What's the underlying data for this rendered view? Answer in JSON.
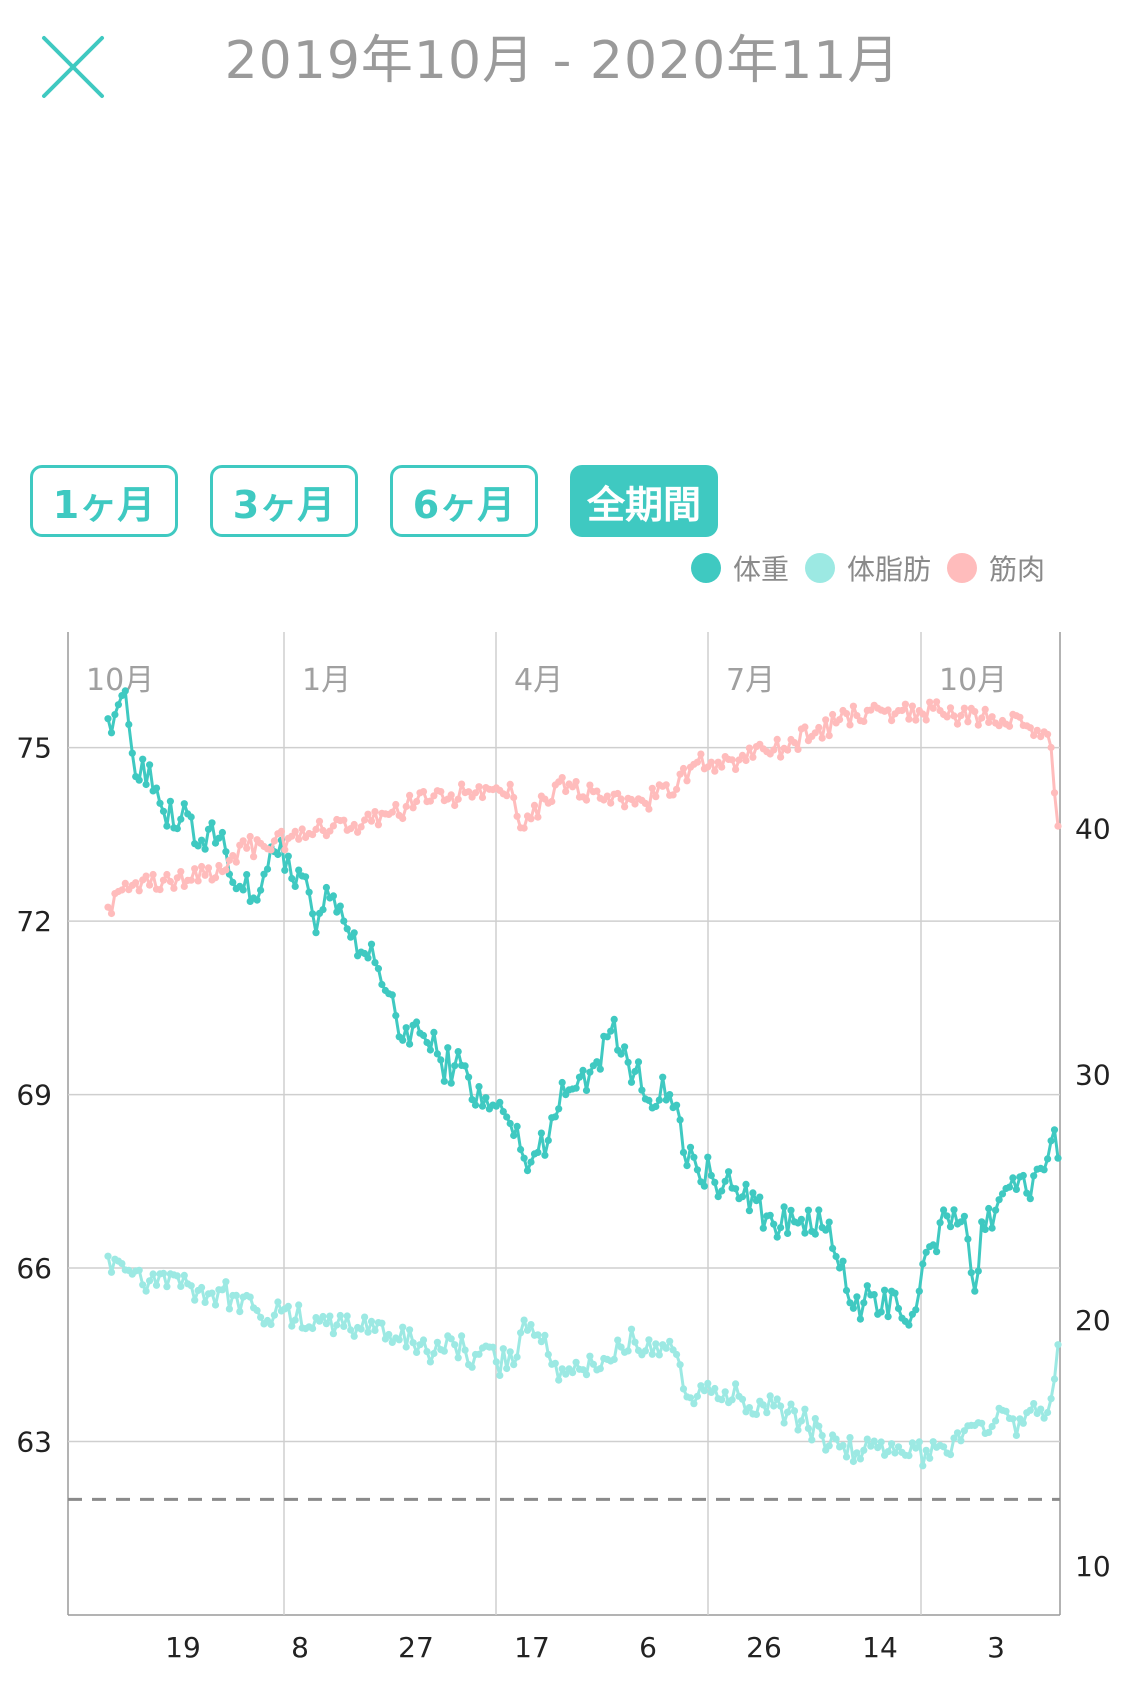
{
  "header": {
    "title": "2019年10月 - 2020年11月",
    "close_icon": "close-x-icon"
  },
  "range_tabs": [
    {
      "label": "1ヶ月",
      "active": false
    },
    {
      "label": "3ヶ月",
      "active": false
    },
    {
      "label": "6ヶ月",
      "active": false
    },
    {
      "label": "全期間",
      "active": true
    }
  ],
  "legend": [
    {
      "label": "体重",
      "color": "#3fc9c1"
    },
    {
      "label": "体脂肪",
      "color": "#9ce9e3"
    },
    {
      "label": "筋肉",
      "color": "#ffbcbc"
    }
  ],
  "chart_data": {
    "type": "line",
    "month_labels": [
      "10月",
      "1月",
      "4月",
      "7月",
      "10月"
    ],
    "x_tick_labels": [
      "19",
      "8",
      "27",
      "17",
      "6",
      "26",
      "14",
      "3"
    ],
    "y_left_ticks": [
      "75",
      "72",
      "69",
      "66",
      "63"
    ],
    "y_left_range": [
      60,
      77
    ],
    "y_right_ticks": [
      "40",
      "30",
      "20",
      "10"
    ],
    "y_right_range": [
      8,
      48
    ],
    "reference_line_left": 62,
    "grid": true,
    "legend_position": "top-right",
    "series": [
      {
        "name": "体重",
        "axis": "left",
        "color": "#3fc9c1",
        "keypoints": [
          [
            0,
            75.5
          ],
          [
            4,
            75.9
          ],
          [
            6,
            75.4
          ],
          [
            8,
            74.5
          ],
          [
            10,
            74.8
          ],
          [
            14,
            74.3
          ],
          [
            16,
            73.9
          ],
          [
            20,
            73.6
          ],
          [
            24,
            73.8
          ],
          [
            26,
            73.3
          ],
          [
            30,
            73.7
          ],
          [
            34,
            73.2
          ],
          [
            38,
            72.6
          ],
          [
            42,
            72.4
          ],
          [
            46,
            72.9
          ],
          [
            50,
            73.4
          ],
          [
            54,
            72.6
          ],
          [
            58,
            72.5
          ],
          [
            60,
            71.8
          ],
          [
            64,
            72.4
          ],
          [
            68,
            72.0
          ],
          [
            72,
            71.4
          ],
          [
            76,
            71.6
          ],
          [
            80,
            70.8
          ],
          [
            84,
            70.0
          ],
          [
            88,
            70.2
          ],
          [
            92,
            69.9
          ],
          [
            96,
            69.6
          ],
          [
            100,
            69.5
          ],
          [
            104,
            69.3
          ],
          [
            108,
            68.8
          ],
          [
            112,
            68.8
          ],
          [
            116,
            68.5
          ],
          [
            120,
            67.9
          ],
          [
            124,
            68.0
          ],
          [
            128,
            68.6
          ],
          [
            132,
            69.0
          ],
          [
            136,
            69.3
          ],
          [
            140,
            69.5
          ],
          [
            144,
            70.0
          ],
          [
            146,
            70.3
          ],
          [
            148,
            69.7
          ],
          [
            152,
            69.4
          ],
          [
            156,
            68.9
          ],
          [
            160,
            69.3
          ],
          [
            162,
            69.0
          ],
          [
            166,
            68.0
          ],
          [
            170,
            67.7
          ],
          [
            174,
            67.6
          ],
          [
            178,
            67.5
          ],
          [
            182,
            67.2
          ],
          [
            186,
            67.3
          ],
          [
            190,
            66.9
          ],
          [
            194,
            66.7
          ],
          [
            198,
            66.8
          ],
          [
            202,
            67.0
          ],
          [
            206,
            66.7
          ],
          [
            210,
            66.2
          ],
          [
            214,
            65.4
          ],
          [
            218,
            65.4
          ],
          [
            222,
            65.2
          ],
          [
            226,
            65.6
          ],
          [
            228,
            65.3
          ],
          [
            232,
            65.2
          ],
          [
            234,
            65.6
          ],
          [
            238,
            66.4
          ],
          [
            242,
            66.9
          ],
          [
            246,
            66.8
          ],
          [
            248,
            66.5
          ],
          [
            250,
            65.6
          ],
          [
            252,
            66.8
          ],
          [
            256,
            67.0
          ],
          [
            260,
            67.4
          ],
          [
            264,
            67.6
          ],
          [
            266,
            67.2
          ],
          [
            270,
            67.7
          ],
          [
            272,
            68.2
          ],
          [
            274,
            67.9
          ]
        ]
      },
      {
        "name": "体脂肪",
        "axis": "right",
        "color": "#9ce9e3",
        "keypoints": [
          [
            0,
            22.6
          ],
          [
            4,
            22.3
          ],
          [
            8,
            22.0
          ],
          [
            12,
            21.6
          ],
          [
            16,
            21.9
          ],
          [
            20,
            21.8
          ],
          [
            24,
            21.4
          ],
          [
            30,
            21.1
          ],
          [
            36,
            21.0
          ],
          [
            42,
            20.5
          ],
          [
            48,
            20.2
          ],
          [
            54,
            20.0
          ],
          [
            60,
            20.1
          ],
          [
            66,
            19.8
          ],
          [
            72,
            19.7
          ],
          [
            78,
            19.9
          ],
          [
            84,
            19.2
          ],
          [
            90,
            19.0
          ],
          [
            96,
            18.8
          ],
          [
            100,
            19.0
          ],
          [
            106,
            18.6
          ],
          [
            112,
            18.3
          ],
          [
            118,
            18.5
          ],
          [
            120,
            20.0
          ],
          [
            124,
            19.4
          ],
          [
            128,
            18.2
          ],
          [
            132,
            17.8
          ],
          [
            136,
            18.0
          ],
          [
            140,
            18.2
          ],
          [
            144,
            18.4
          ],
          [
            148,
            18.9
          ],
          [
            152,
            19.1
          ],
          [
            156,
            19.2
          ],
          [
            160,
            19.0
          ],
          [
            164,
            18.6
          ],
          [
            166,
            17.2
          ],
          [
            170,
            16.9
          ],
          [
            176,
            16.8
          ],
          [
            182,
            16.9
          ],
          [
            188,
            16.7
          ],
          [
            194,
            16.5
          ],
          [
            200,
            15.9
          ],
          [
            206,
            15.3
          ],
          [
            212,
            14.9
          ],
          [
            218,
            14.7
          ],
          [
            224,
            14.5
          ],
          [
            230,
            14.5
          ],
          [
            236,
            14.7
          ],
          [
            240,
            14.9
          ],
          [
            244,
            15.2
          ],
          [
            248,
            15.7
          ],
          [
            252,
            15.8
          ],
          [
            256,
            15.9
          ],
          [
            260,
            16.0
          ],
          [
            264,
            15.8
          ],
          [
            268,
            16.2
          ],
          [
            272,
            16.8
          ],
          [
            274,
            19.0
          ]
        ]
      },
      {
        "name": "筋肉",
        "axis": "right",
        "color": "#ffbcbc",
        "keypoints": [
          [
            0,
            36.8
          ],
          [
            4,
            37.5
          ],
          [
            8,
            37.8
          ],
          [
            12,
            37.7
          ],
          [
            16,
            37.9
          ],
          [
            20,
            38.0
          ],
          [
            24,
            37.9
          ],
          [
            28,
            38.1
          ],
          [
            32,
            38.5
          ],
          [
            36,
            38.9
          ],
          [
            40,
            39.2
          ],
          [
            44,
            39.4
          ],
          [
            48,
            39.5
          ],
          [
            52,
            39.6
          ],
          [
            58,
            39.8
          ],
          [
            64,
            39.9
          ],
          [
            70,
            40.0
          ],
          [
            76,
            40.3
          ],
          [
            80,
            40.6
          ],
          [
            86,
            40.9
          ],
          [
            92,
            41.1
          ],
          [
            98,
            41.2
          ],
          [
            104,
            41.5
          ],
          [
            110,
            41.6
          ],
          [
            116,
            41.8
          ],
          [
            118,
            40.5
          ],
          [
            122,
            40.4
          ],
          [
            126,
            41.2
          ],
          [
            130,
            41.9
          ],
          [
            134,
            41.7
          ],
          [
            140,
            41.5
          ],
          [
            146,
            41.4
          ],
          [
            152,
            41.0
          ],
          [
            158,
            41.3
          ],
          [
            164,
            41.6
          ],
          [
            168,
            42.5
          ],
          [
            174,
            42.7
          ],
          [
            180,
            42.8
          ],
          [
            186,
            42.9
          ],
          [
            192,
            43.2
          ],
          [
            198,
            43.5
          ],
          [
            204,
            43.9
          ],
          [
            210,
            44.3
          ],
          [
            216,
            44.6
          ],
          [
            222,
            44.9
          ],
          [
            228,
            44.8
          ],
          [
            234,
            44.8
          ],
          [
            240,
            44.8
          ],
          [
            246,
            44.6
          ],
          [
            252,
            44.5
          ],
          [
            258,
            44.4
          ],
          [
            264,
            44.2
          ],
          [
            268,
            44.0
          ],
          [
            272,
            43.3
          ],
          [
            274,
            40.1
          ]
        ]
      }
    ]
  }
}
